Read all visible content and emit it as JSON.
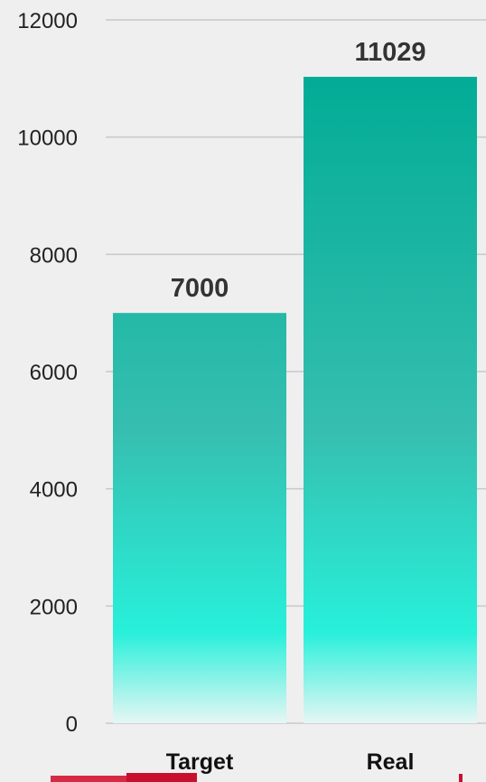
{
  "chart_data": {
    "type": "bar",
    "categories": [
      "Target",
      "Real"
    ],
    "values": [
      7000,
      11029
    ],
    "data_labels": [
      "7000",
      "11029"
    ],
    "ylim": [
      0,
      12000
    ],
    "y_ticks": [
      0,
      2000,
      4000,
      6000,
      8000,
      10000,
      12000
    ],
    "y_tick_labels": [
      "0",
      "2000",
      "4000",
      "6000",
      "8000",
      "10000",
      "12000"
    ],
    "grid": true,
    "legend": "none",
    "colors": {
      "bar_top": "#02ac96",
      "bar_mid": "#28f0da",
      "bar_bottom": "#e6f6f4",
      "background": "#efefef",
      "grid": "#c8c8c8"
    }
  }
}
